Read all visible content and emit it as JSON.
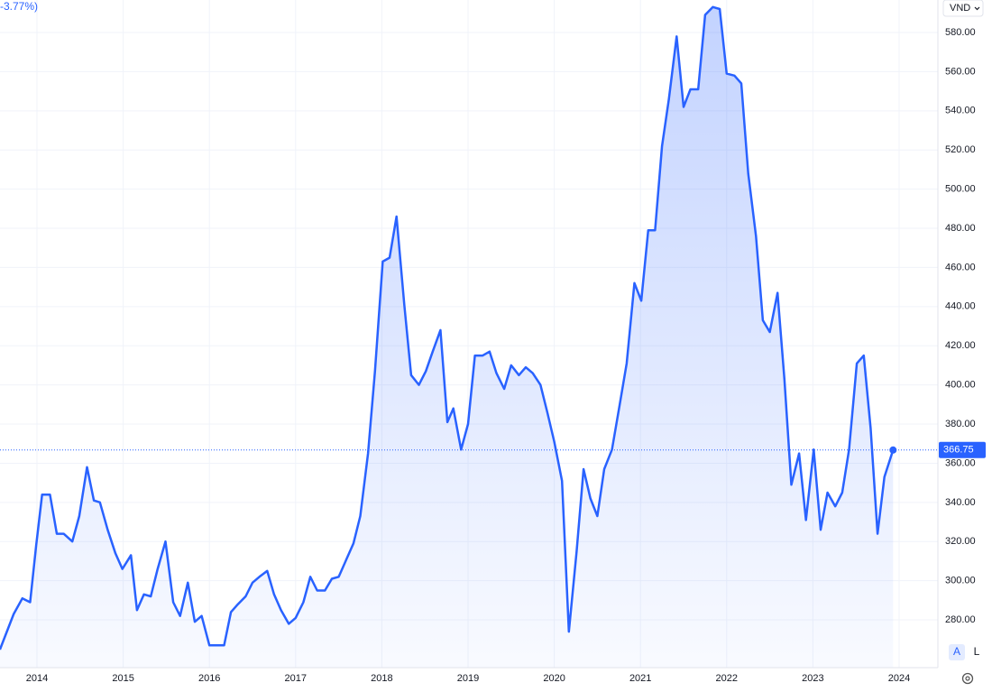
{
  "chart_data": {
    "type": "area",
    "change_label": "-3.77%)",
    "currency": "VND",
    "scale_buttons": [
      "A",
      "L"
    ],
    "color": "#2962ff",
    "grid": true,
    "x": [
      2013.57,
      2013.73,
      2013.83,
      2013.92,
      2013.99,
      2014.06,
      2014.15,
      2014.23,
      2014.31,
      2014.41,
      2014.49,
      2014.58,
      2014.66,
      2014.73,
      2014.82,
      2014.91,
      2014.99,
      2015.09,
      2015.16,
      2015.24,
      2015.32,
      2015.4,
      2015.49,
      2015.58,
      2015.66,
      2015.75,
      2015.83,
      2015.91,
      2016.0,
      2016.08,
      2016.17,
      2016.25,
      2016.33,
      2016.42,
      2016.5,
      2016.58,
      2016.67,
      2016.75,
      2016.83,
      2016.92,
      2017.0,
      2017.09,
      2017.17,
      2017.25,
      2017.34,
      2017.42,
      2017.5,
      2017.59,
      2017.67,
      2017.75,
      2017.84,
      2017.92,
      2018.01,
      2018.09,
      2018.17,
      2018.26,
      2018.34,
      2018.43,
      2018.51,
      2018.59,
      2018.68,
      2018.76,
      2018.83,
      2018.92,
      2019.0,
      2019.08,
      2019.17,
      2019.25,
      2019.33,
      2019.42,
      2019.5,
      2019.59,
      2019.67,
      2019.75,
      2019.84,
      2019.92,
      2020.0,
      2020.09,
      2020.17,
      2020.26,
      2020.34,
      2020.42,
      2020.5,
      2020.58,
      2020.67,
      2020.76,
      2020.84,
      2020.93,
      2021.01,
      2021.09,
      2021.17,
      2021.25,
      2021.33,
      2021.42,
      2021.5,
      2021.58,
      2021.67,
      2021.75,
      2021.84,
      2021.92,
      2022.0,
      2022.09,
      2022.17,
      2022.25,
      2022.34,
      2022.42,
      2022.5,
      2022.59,
      2022.67,
      2022.75,
      2022.84,
      2022.92,
      2023.01,
      2023.09,
      2023.17,
      2023.26,
      2023.34,
      2023.42,
      2023.51,
      2023.59,
      2023.67,
      2023.75,
      2023.83,
      2023.93
    ],
    "values": [
      264.8,
      283,
      291,
      289,
      318,
      344,
      344,
      324,
      324,
      320,
      333,
      358,
      341,
      340,
      326,
      314,
      306,
      313,
      285,
      293,
      292,
      306,
      320,
      289,
      282,
      299,
      279,
      282,
      267,
      267,
      267,
      284,
      288,
      292,
      299,
      302,
      305,
      293,
      285,
      278,
      281,
      289,
      302,
      295,
      295,
      301,
      302,
      311,
      319,
      333,
      365,
      407,
      463,
      465,
      486,
      441,
      405,
      400,
      407,
      417,
      428,
      381,
      388,
      367,
      380,
      415,
      415,
      417,
      406,
      398,
      410,
      405,
      409,
      406,
      400,
      386,
      371,
      351,
      274,
      315,
      357,
      342,
      333,
      357,
      367,
      390,
      411,
      452,
      443,
      479,
      479,
      522,
      546,
      578,
      542,
      551,
      551,
      589,
      593,
      592,
      559,
      558,
      554,
      508,
      476,
      433,
      427,
      447,
      403,
      349,
      365,
      331,
      367,
      326,
      345,
      338,
      345,
      367,
      411,
      415,
      378,
      324,
      353,
      366.75
    ],
    "xlim": [
      2013.571,
      2024.45
    ],
    "xticks": [
      2014,
      2015,
      2016,
      2017,
      2018,
      2019,
      2020,
      2021,
      2022,
      2023,
      2024
    ],
    "ylim": [
      255.6,
      596.6
    ],
    "yticks": [
      {
        "value": 280,
        "label": "280.00"
      },
      {
        "value": 300,
        "label": "300.00"
      },
      {
        "value": 320,
        "label": "320.00"
      },
      {
        "value": 340,
        "label": "340.00"
      },
      {
        "value": 360,
        "label": "360.00"
      },
      {
        "value": 380,
        "label": "380.00"
      },
      {
        "value": 400,
        "label": "400.00"
      },
      {
        "value": 420,
        "label": "420.00"
      },
      {
        "value": 440,
        "label": "440.00"
      },
      {
        "value": 460,
        "label": "460.00"
      },
      {
        "value": 480,
        "label": "480.00"
      },
      {
        "value": 500,
        "label": "500.00"
      },
      {
        "value": 520,
        "label": "520.00"
      },
      {
        "value": 540,
        "label": "540.00"
      },
      {
        "value": 560,
        "label": "560.00"
      },
      {
        "value": 580,
        "label": "580.00"
      }
    ]
  }
}
